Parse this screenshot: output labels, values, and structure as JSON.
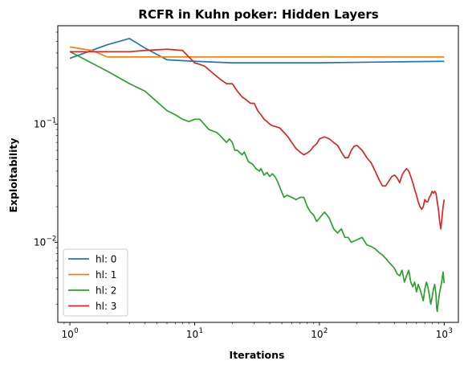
{
  "chart_data": {
    "type": "line",
    "title": "RCFR in Kuhn poker: Hidden Layers",
    "xlabel": "Iterations",
    "ylabel": "Exploitability",
    "xscale": "log",
    "yscale": "log",
    "xlim": [
      0.8,
      1300
    ],
    "ylim": [
      0.0021,
      0.68
    ],
    "x_ticks": [
      {
        "base": "10",
        "exp": "0",
        "value": 1
      },
      {
        "base": "10",
        "exp": "1",
        "value": 10
      },
      {
        "base": "10",
        "exp": "2",
        "value": 100
      },
      {
        "base": "10",
        "exp": "3",
        "value": 1000
      }
    ],
    "y_ticks": [
      {
        "base": "10",
        "exp": "−2",
        "value": 0.01
      },
      {
        "base": "10",
        "exp": "−1",
        "value": 0.1
      }
    ],
    "grid": false,
    "legend_position": "lower-left",
    "series": [
      {
        "name": "hl: 0",
        "color": "#1f77b4",
        "points": [
          [
            1,
            0.36
          ],
          [
            2,
            0.47
          ],
          [
            3,
            0.53
          ],
          [
            4,
            0.44
          ],
          [
            6,
            0.35
          ],
          [
            10,
            0.34
          ],
          [
            20,
            0.33
          ],
          [
            50,
            0.33
          ],
          [
            100,
            0.33
          ],
          [
            300,
            0.335
          ],
          [
            1000,
            0.34
          ]
        ]
      },
      {
        "name": "hl: 1",
        "color": "#ff7f0e",
        "points": [
          [
            1,
            0.45
          ],
          [
            1.5,
            0.42
          ],
          [
            2,
            0.37
          ],
          [
            3,
            0.37
          ],
          [
            10,
            0.37
          ],
          [
            100,
            0.37
          ],
          [
            1000,
            0.37
          ]
        ]
      },
      {
        "name": "hl: 2",
        "color": "#2ca02c",
        "points": [
          [
            1,
            0.41
          ],
          [
            2,
            0.28
          ],
          [
            3,
            0.22
          ],
          [
            4,
            0.19
          ],
          [
            6,
            0.13
          ],
          [
            7,
            0.12
          ],
          [
            8,
            0.11
          ],
          [
            9,
            0.105
          ],
          [
            10,
            0.11
          ],
          [
            11,
            0.11
          ],
          [
            13,
            0.09
          ],
          [
            15,
            0.085
          ],
          [
            16,
            0.08
          ],
          [
            18,
            0.07
          ],
          [
            19,
            0.075
          ],
          [
            20,
            0.07
          ],
          [
            21,
            0.06
          ],
          [
            22,
            0.06
          ],
          [
            24,
            0.055
          ],
          [
            25,
            0.058
          ],
          [
            27,
            0.048
          ],
          [
            29,
            0.046
          ],
          [
            31,
            0.042
          ],
          [
            33,
            0.04
          ],
          [
            34,
            0.042
          ],
          [
            36,
            0.037
          ],
          [
            38,
            0.039
          ],
          [
            40,
            0.036
          ],
          [
            42,
            0.038
          ],
          [
            44,
            0.036
          ],
          [
            46,
            0.033
          ],
          [
            49,
            0.028
          ],
          [
            52,
            0.024
          ],
          [
            55,
            0.025
          ],
          [
            60,
            0.024
          ],
          [
            65,
            0.023
          ],
          [
            70,
            0.024
          ],
          [
            75,
            0.024
          ],
          [
            80,
            0.02
          ],
          [
            85,
            0.018
          ],
          [
            90,
            0.017
          ],
          [
            95,
            0.015
          ],
          [
            100,
            0.016
          ],
          [
            105,
            0.017
          ],
          [
            110,
            0.018
          ],
          [
            115,
            0.017
          ],
          [
            120,
            0.016
          ],
          [
            130,
            0.013
          ],
          [
            140,
            0.012
          ],
          [
            150,
            0.013
          ],
          [
            160,
            0.011
          ],
          [
            170,
            0.011
          ],
          [
            180,
            0.01
          ],
          [
            200,
            0.0105
          ],
          [
            220,
            0.011
          ],
          [
            240,
            0.0095
          ],
          [
            260,
            0.0092
          ],
          [
            280,
            0.0088
          ],
          [
            300,
            0.0082
          ],
          [
            320,
            0.0078
          ],
          [
            340,
            0.0073
          ],
          [
            360,
            0.0068
          ],
          [
            380,
            0.0064
          ],
          [
            400,
            0.006
          ],
          [
            420,
            0.0054
          ],
          [
            440,
            0.0052
          ],
          [
            460,
            0.0058
          ],
          [
            480,
            0.0046
          ],
          [
            500,
            0.0052
          ],
          [
            520,
            0.0058
          ],
          [
            540,
            0.0046
          ],
          [
            560,
            0.0042
          ],
          [
            580,
            0.0046
          ],
          [
            600,
            0.0038
          ],
          [
            620,
            0.0044
          ],
          [
            640,
            0.004
          ],
          [
            660,
            0.0036
          ],
          [
            680,
            0.0032
          ],
          [
            700,
            0.004
          ],
          [
            720,
            0.0046
          ],
          [
            740,
            0.0042
          ],
          [
            760,
            0.0036
          ],
          [
            780,
            0.003
          ],
          [
            800,
            0.0034
          ],
          [
            820,
            0.004
          ],
          [
            840,
            0.0044
          ],
          [
            860,
            0.0036
          ],
          [
            870,
            0.0028
          ],
          [
            880,
            0.0026
          ],
          [
            900,
            0.0032
          ],
          [
            920,
            0.0038
          ],
          [
            940,
            0.0042
          ],
          [
            960,
            0.0048
          ],
          [
            980,
            0.0056
          ],
          [
            1000,
            0.0045
          ]
        ]
      },
      {
        "name": "hl: 3",
        "color": "#d62728",
        "points": [
          [
            1,
            0.41
          ],
          [
            2,
            0.41
          ],
          [
            3,
            0.41
          ],
          [
            4,
            0.42
          ],
          [
            6,
            0.43
          ],
          [
            8,
            0.42
          ],
          [
            10,
            0.33
          ],
          [
            11,
            0.32
          ],
          [
            12,
            0.31
          ],
          [
            14,
            0.27
          ],
          [
            16,
            0.24
          ],
          [
            18,
            0.22
          ],
          [
            20,
            0.22
          ],
          [
            22,
            0.19
          ],
          [
            24,
            0.17
          ],
          [
            26,
            0.16
          ],
          [
            28,
            0.15
          ],
          [
            30,
            0.15
          ],
          [
            32,
            0.13
          ],
          [
            34,
            0.12
          ],
          [
            36,
            0.11
          ],
          [
            38,
            0.105
          ],
          [
            40,
            0.1
          ],
          [
            42,
            0.097
          ],
          [
            45,
            0.095
          ],
          [
            48,
            0.093
          ],
          [
            52,
            0.085
          ],
          [
            56,
            0.078
          ],
          [
            60,
            0.07
          ],
          [
            65,
            0.062
          ],
          [
            70,
            0.058
          ],
          [
            75,
            0.055
          ],
          [
            80,
            0.057
          ],
          [
            85,
            0.06
          ],
          [
            90,
            0.065
          ],
          [
            95,
            0.068
          ],
          [
            100,
            0.075
          ],
          [
            110,
            0.078
          ],
          [
            120,
            0.075
          ],
          [
            130,
            0.07
          ],
          [
            140,
            0.066
          ],
          [
            150,
            0.058
          ],
          [
            160,
            0.052
          ],
          [
            170,
            0.052
          ],
          [
            180,
            0.06
          ],
          [
            190,
            0.065
          ],
          [
            200,
            0.066
          ],
          [
            220,
            0.06
          ],
          [
            240,
            0.052
          ],
          [
            260,
            0.047
          ],
          [
            280,
            0.04
          ],
          [
            300,
            0.034
          ],
          [
            320,
            0.03
          ],
          [
            340,
            0.03
          ],
          [
            360,
            0.033
          ],
          [
            380,
            0.036
          ],
          [
            400,
            0.037
          ],
          [
            420,
            0.035
          ],
          [
            440,
            0.032
          ],
          [
            460,
            0.037
          ],
          [
            480,
            0.04
          ],
          [
            500,
            0.042
          ],
          [
            520,
            0.04
          ],
          [
            540,
            0.036
          ],
          [
            560,
            0.032
          ],
          [
            580,
            0.028
          ],
          [
            600,
            0.025
          ],
          [
            620,
            0.022
          ],
          [
            640,
            0.02
          ],
          [
            660,
            0.019
          ],
          [
            680,
            0.02
          ],
          [
            700,
            0.023
          ],
          [
            720,
            0.022
          ],
          [
            740,
            0.022
          ],
          [
            760,
            0.024
          ],
          [
            780,
            0.025
          ],
          [
            800,
            0.027
          ],
          [
            820,
            0.026
          ],
          [
            840,
            0.027
          ],
          [
            860,
            0.026
          ],
          [
            880,
            0.022
          ],
          [
            900,
            0.019
          ],
          [
            920,
            0.015
          ],
          [
            940,
            0.013
          ],
          [
            960,
            0.016
          ],
          [
            980,
            0.02
          ],
          [
            1000,
            0.023
          ]
        ]
      }
    ]
  }
}
